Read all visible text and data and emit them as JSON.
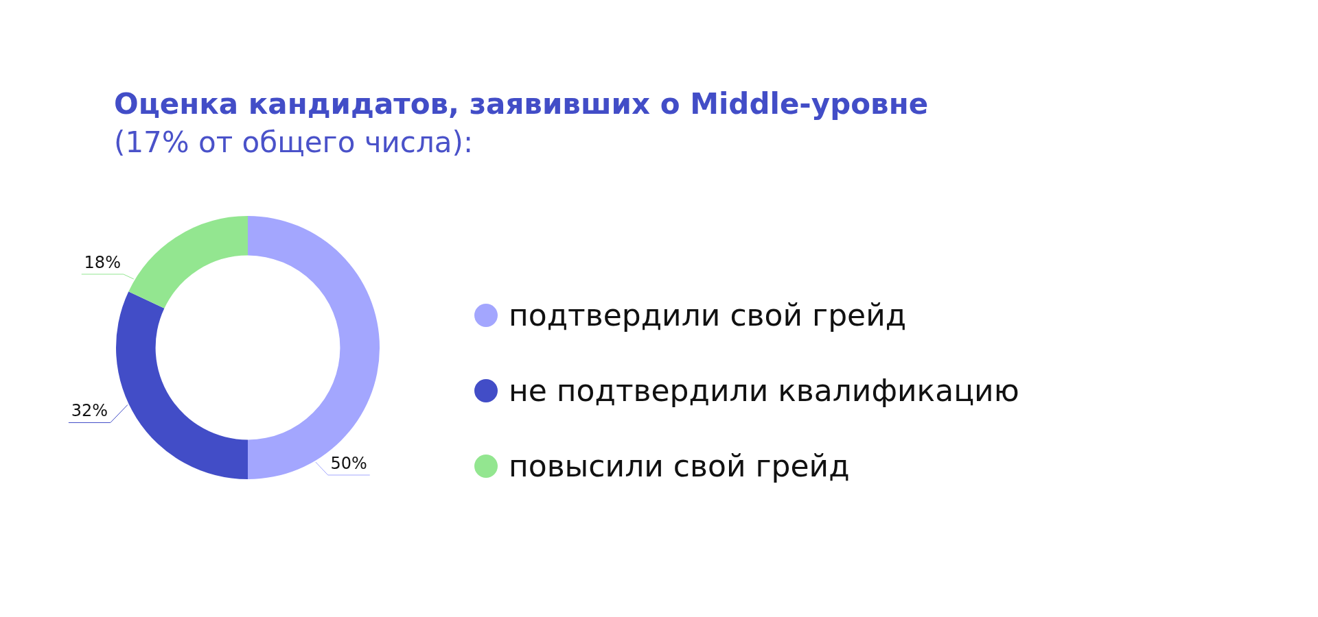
{
  "chart_data": {
    "type": "donut",
    "title": "Оценка кандидатов, заявивших о Middle-уровне",
    "subtitle": "(17% от общего числа):",
    "categories": [
      "подтвердили свой грейд",
      "не подтвердили квалификацию",
      "повысили свой грейд"
    ],
    "values": [
      50,
      32,
      18
    ],
    "colors": [
      "#a3a6fe",
      "#424dc7",
      "#93e690"
    ],
    "value_labels": [
      "50%",
      "32%",
      "18%"
    ],
    "legend": "right"
  }
}
